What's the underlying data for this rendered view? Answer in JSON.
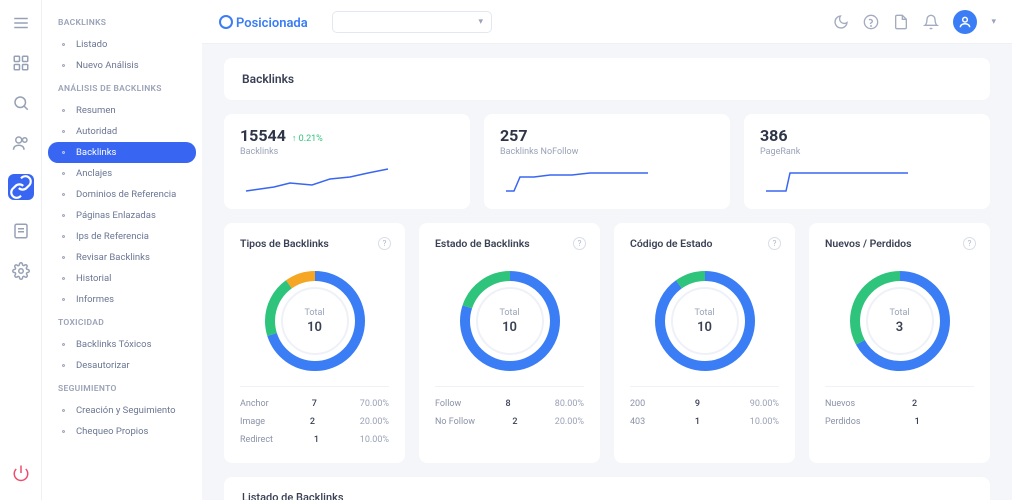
{
  "brand": "Posicionada",
  "colors": {
    "primary": "#3866f2",
    "bg": "#f5f6fa",
    "text": "#3a4155",
    "muted": "#9aa2b7",
    "green": "#2ec47b",
    "orange": "#f5a623",
    "sparkline": "#3866f2"
  },
  "iconbar": [
    {
      "name": "menu",
      "active": false
    },
    {
      "name": "dashboard",
      "active": false
    },
    {
      "name": "search",
      "active": false
    },
    {
      "name": "users",
      "active": false
    },
    {
      "name": "links",
      "active": true
    },
    {
      "name": "reports",
      "active": false
    },
    {
      "name": "settings",
      "active": false
    }
  ],
  "sidebar": {
    "sections": [
      {
        "title": "BACKLINKS",
        "items": [
          {
            "label": "Listado"
          },
          {
            "label": "Nuevo Análisis"
          }
        ]
      },
      {
        "title": "ANÁLISIS DE BACKLINKS",
        "items": [
          {
            "label": "Resumen"
          },
          {
            "label": "Autoridad"
          },
          {
            "label": "Backlinks",
            "active": true
          },
          {
            "label": "Anclajes"
          },
          {
            "label": "Dominios de Referencia"
          },
          {
            "label": "Páginas Enlazadas"
          },
          {
            "label": "Ips de Referencia"
          },
          {
            "label": "Revisar Backlinks"
          },
          {
            "label": "Historial"
          },
          {
            "label": "Informes"
          }
        ]
      },
      {
        "title": "TOXICIDAD",
        "items": [
          {
            "label": "Backlinks Tóxicos"
          },
          {
            "label": "Desautorizar"
          }
        ]
      },
      {
        "title": "SEGUIMIENTO",
        "items": [
          {
            "label": "Creación y Seguimiento"
          },
          {
            "label": "Chequeo Propios"
          }
        ]
      }
    ]
  },
  "page": {
    "title": "Backlinks"
  },
  "stats": [
    {
      "value": "15544",
      "delta": "↑ 0.21%",
      "label": "Backlinks",
      "spark": [
        6,
        28,
        20,
        26,
        34,
        24,
        50,
        20,
        72,
        22,
        90,
        16,
        110,
        14,
        128,
        10,
        148,
        6
      ]
    },
    {
      "value": "257",
      "delta": "",
      "label": "Backlinks NoFollow",
      "spark": [
        6,
        28,
        14,
        28,
        20,
        14,
        34,
        14,
        50,
        12,
        72,
        12,
        90,
        10,
        148,
        10
      ]
    },
    {
      "value": "386",
      "delta": "",
      "label": "PageRank",
      "spark": [
        6,
        28,
        26,
        28,
        30,
        10,
        148,
        10
      ]
    }
  ],
  "charts": [
    {
      "title": "Tipos de Backlinks",
      "totalLabel": "Total",
      "total": "10",
      "segments": [
        {
          "c": "#3a7df5",
          "pct": 70
        },
        {
          "c": "#2ec47b",
          "pct": 20
        },
        {
          "c": "#f5a623",
          "pct": 10
        }
      ],
      "rows": [
        {
          "l": "Anchor",
          "v": "7",
          "p": "70.00%"
        },
        {
          "l": "Image",
          "v": "2",
          "p": "20.00%"
        },
        {
          "l": "Redirect",
          "v": "1",
          "p": "10.00%"
        }
      ]
    },
    {
      "title": "Estado de Backlinks",
      "totalLabel": "Total",
      "total": "10",
      "segments": [
        {
          "c": "#3a7df5",
          "pct": 80
        },
        {
          "c": "#2ec47b",
          "pct": 20
        }
      ],
      "rows": [
        {
          "l": "Follow",
          "v": "8",
          "p": "80.00%"
        },
        {
          "l": "No Follow",
          "v": "2",
          "p": "20.00%"
        }
      ]
    },
    {
      "title": "Código de Estado",
      "totalLabel": "Total",
      "total": "10",
      "segments": [
        {
          "c": "#3a7df5",
          "pct": 90
        },
        {
          "c": "#2ec47b",
          "pct": 10
        }
      ],
      "rows": [
        {
          "l": "200",
          "v": "9",
          "p": "90.00%"
        },
        {
          "l": "403",
          "v": "1",
          "p": "10.00%"
        }
      ]
    },
    {
      "title": "Nuevos / Perdidos",
      "totalLabel": "Total",
      "total": "3",
      "segments": [
        {
          "c": "#3a7df5",
          "pct": 67
        },
        {
          "c": "#2ec47b",
          "pct": 33
        }
      ],
      "rows": [
        {
          "l": "Nuevos",
          "v": "2",
          "p": ""
        },
        {
          "l": "Perdidos",
          "v": "1",
          "p": ""
        }
      ]
    }
  ],
  "bottom": {
    "title": "Listado de Backlinks"
  }
}
